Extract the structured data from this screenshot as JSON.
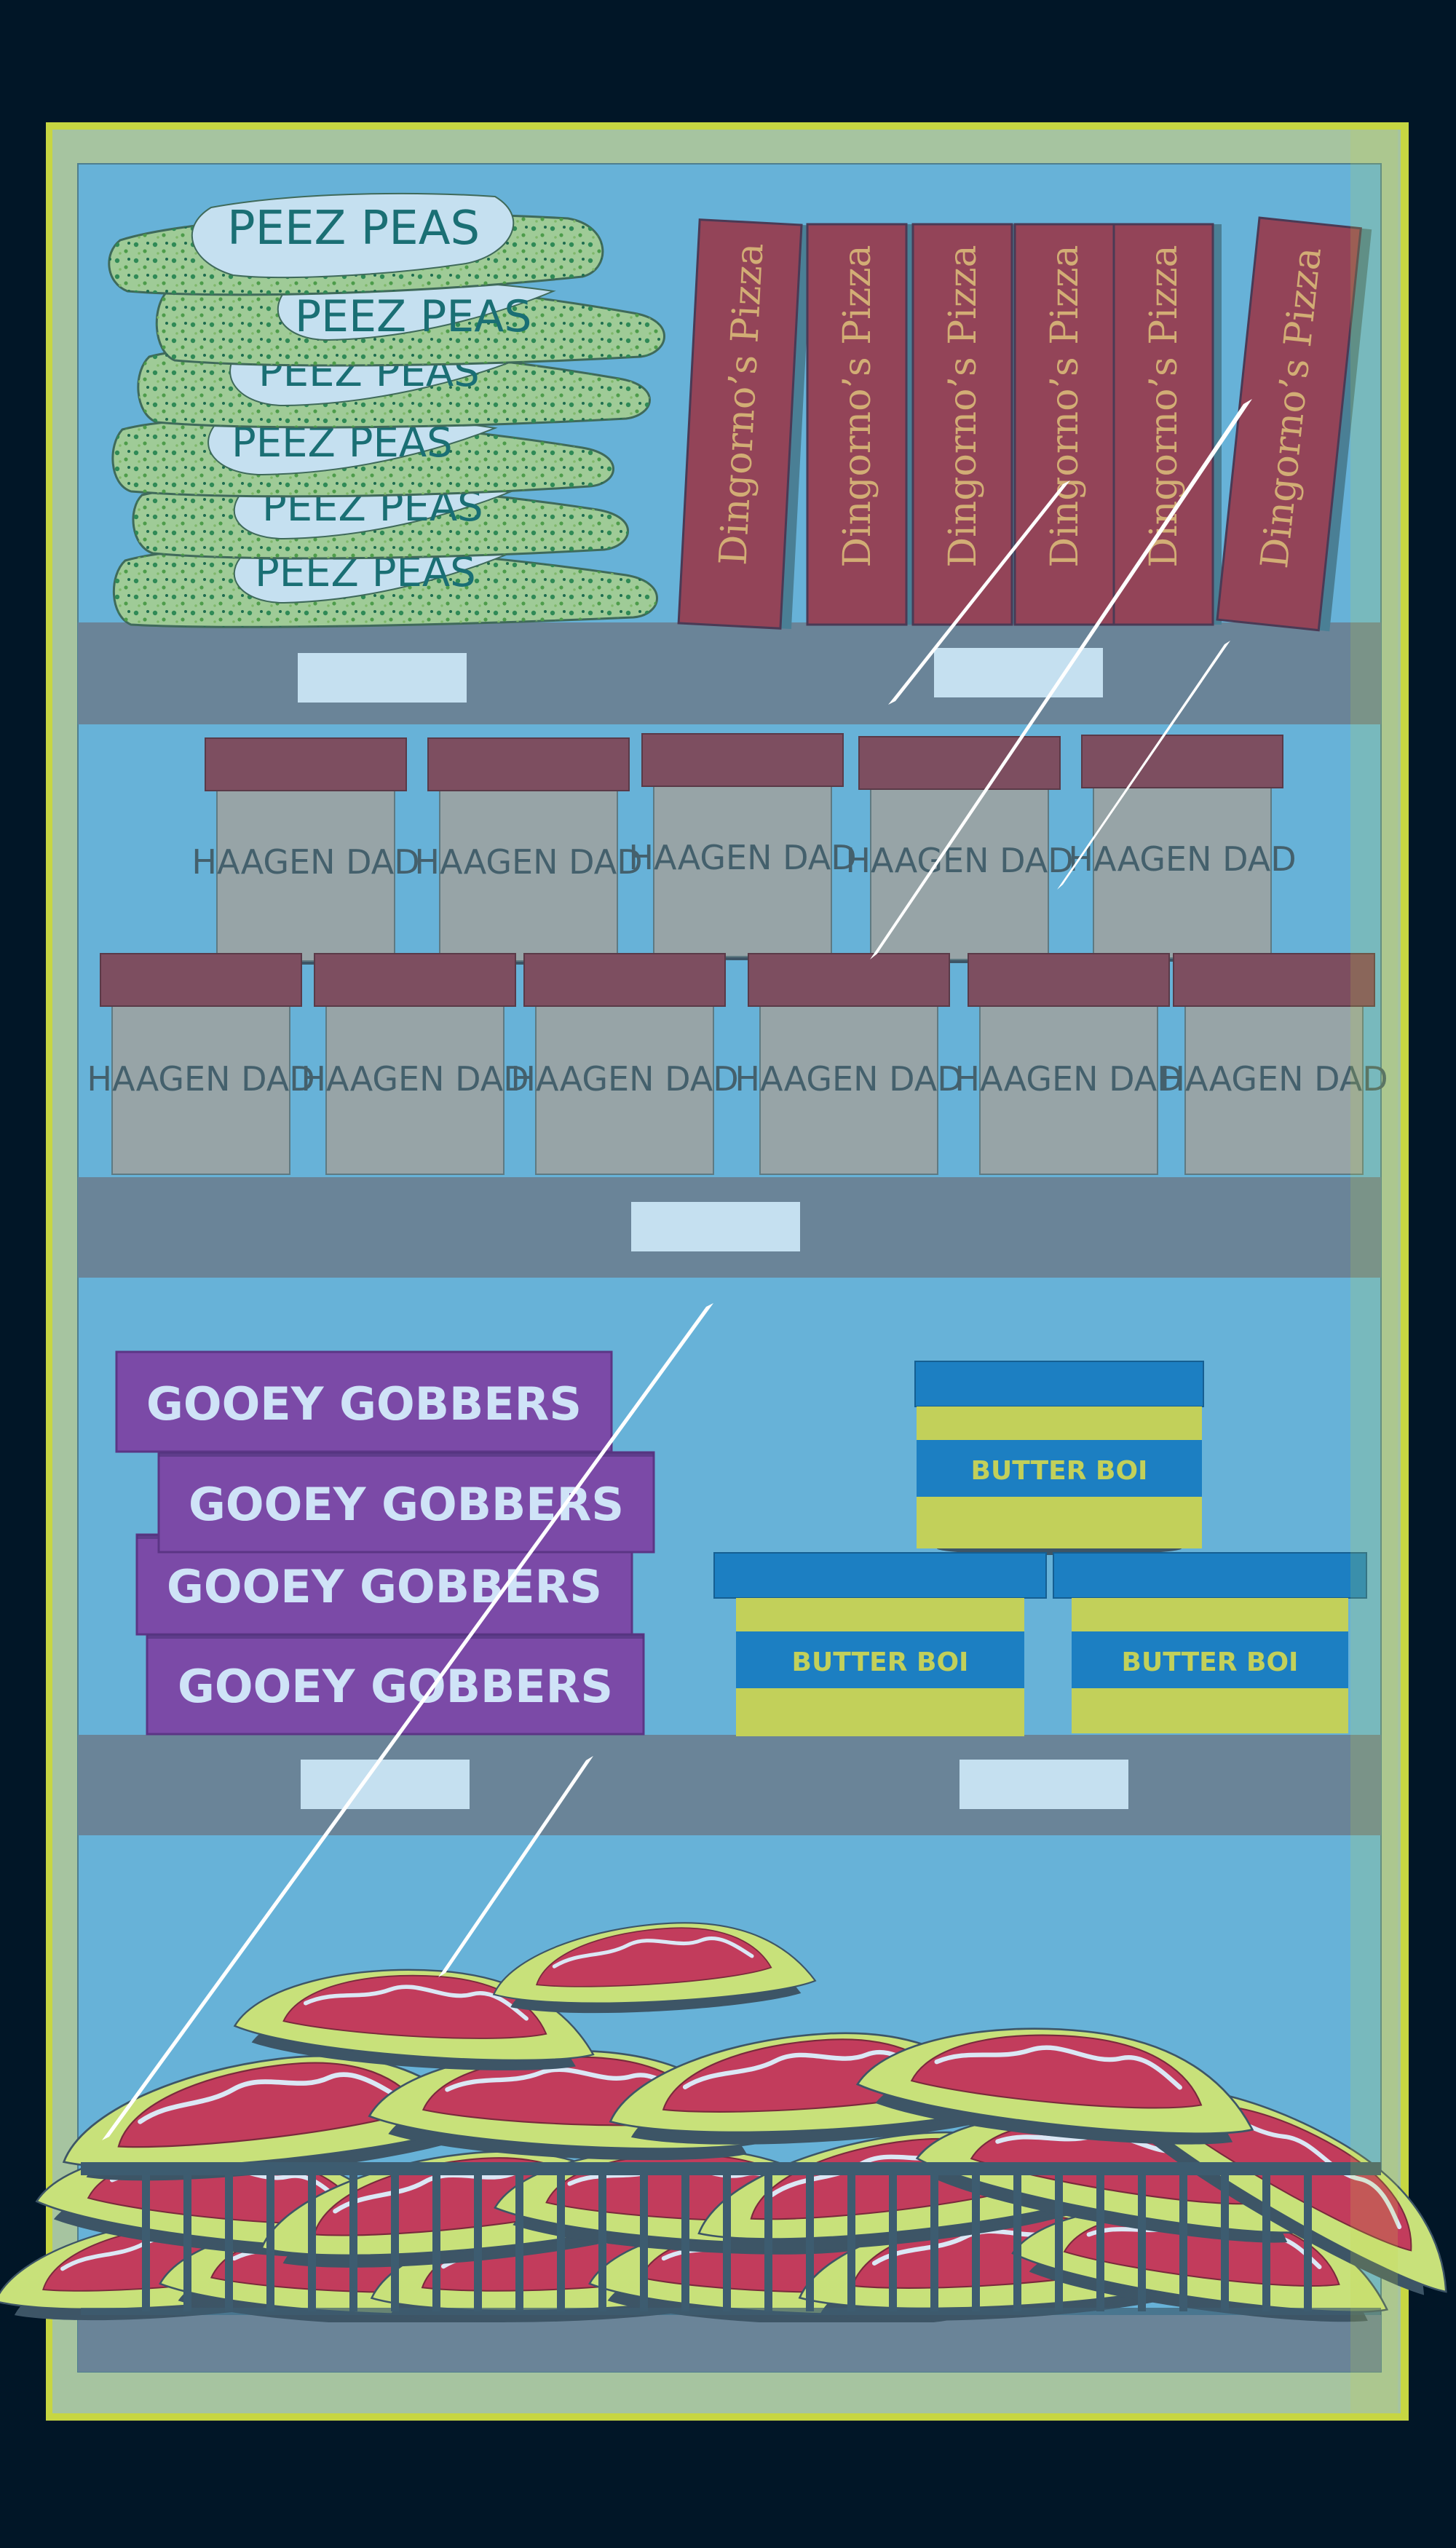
{
  "colors": {
    "background": "#011627",
    "frame": "#c7d642",
    "frame_inner": "#a6c4a0",
    "glass": "#67b2d8",
    "shelf": "#6a8498",
    "shelf_label": "#c5e0f0",
    "pizza_box": "#934458",
    "pizza_text": "#d2ad75",
    "tub_body": "#97a4a7",
    "tub_lid": "#7d4e60",
    "tub_text": "#44606c",
    "pea_bag": "#9fcb97",
    "pea_label": "#c5e0f0",
    "pea_text": "#1a6f74",
    "gooey_box": "#7b4aa7",
    "gooey_text": "#cfe3f7",
    "butter_lid": "#1c7fc2",
    "butter_body": "#c2d05a",
    "butter_text": "#c2d05a",
    "meat": "#c23c5c",
    "meat_edge": "#c8e17a",
    "basket": "#3d5c70"
  },
  "peas": {
    "brand": "PEEZ PEAS",
    "count": 6
  },
  "pizza": {
    "brand": "Dingorno’s Pizza",
    "count": 6
  },
  "ice_cream": {
    "brand": "HAAGEN DAD",
    "top_row_count": 5,
    "bottom_row_count": 6
  },
  "candy": {
    "brand": "GOOEY GOBBERS",
    "count": 4
  },
  "butter": {
    "brand": "BUTTER BOI",
    "count": 3
  },
  "meat": {
    "bag_count": 18
  }
}
